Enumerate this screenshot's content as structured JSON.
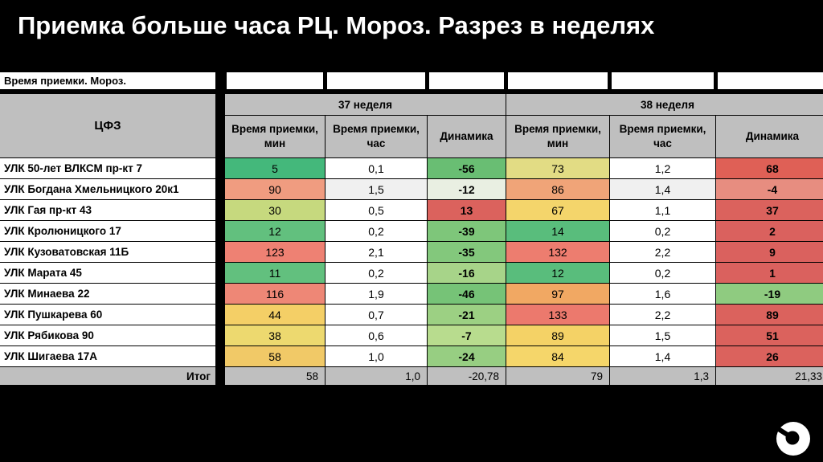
{
  "chart_data": {
    "type": "table",
    "title": "Приемка больше часа РЦ. Мороз. Разрез в неделях",
    "caption": "Время приемки. Мороз.",
    "row_header": "ЦФЗ",
    "column_groups": [
      "37 неделя",
      "38 неделя"
    ],
    "columns": [
      "Время приемки, мин",
      "Время приемки, час",
      "Динамика",
      "Время приемки, мин",
      "Время приемки, час",
      "Динамика"
    ],
    "rows": [
      {
        "name": "УЛК 50-лет ВЛКСМ пр-кт 7",
        "cells": [
          {
            "v": "5",
            "bg": "#44B87B"
          },
          {
            "v": "0,1",
            "bg": "#FFFFFF"
          },
          {
            "v": "-56",
            "bg": "#69BE73"
          },
          {
            "v": "73",
            "bg": "#E2DC84"
          },
          {
            "v": "1,2",
            "bg": "#FFFFFF"
          },
          {
            "v": "68",
            "bg": "#DF6056"
          }
        ]
      },
      {
        "name": "УЛК Богдана Хмельницкого 20к1",
        "cells": [
          {
            "v": "90",
            "bg": "#F09C80"
          },
          {
            "v": "1,5",
            "bg": "#F0F0F0"
          },
          {
            "v": "-12",
            "bg": "#E9EFE2"
          },
          {
            "v": "86",
            "bg": "#F0A478"
          },
          {
            "v": "1,4",
            "bg": "#F0F0F0"
          },
          {
            "v": "-4",
            "bg": "#E78D80"
          }
        ]
      },
      {
        "name": "УЛК Гая пр-кт 43",
        "cells": [
          {
            "v": "30",
            "bg": "#C6D97E"
          },
          {
            "v": "0,5",
            "bg": "#FFFFFF"
          },
          {
            "v": "13",
            "bg": "#DB625D"
          },
          {
            "v": "67",
            "bg": "#F4D56B"
          },
          {
            "v": "1,1",
            "bg": "#FFFFFF"
          },
          {
            "v": "37",
            "bg": "#DB625D"
          }
        ]
      },
      {
        "name": "УЛК Кролюницкого 17",
        "cells": [
          {
            "v": "12",
            "bg": "#62C07E"
          },
          {
            "v": "0,2",
            "bg": "#FFFFFF"
          },
          {
            "v": "-39",
            "bg": "#7EC67A"
          },
          {
            "v": "14",
            "bg": "#59BD7C"
          },
          {
            "v": "0,2",
            "bg": "#FFFFFF"
          },
          {
            "v": "2",
            "bg": "#DA615E"
          }
        ]
      },
      {
        "name": "УЛК Кузоватовская 11Б",
        "cells": [
          {
            "v": "123",
            "bg": "#EE8173"
          },
          {
            "v": "2,1",
            "bg": "#FFFFFF"
          },
          {
            "v": "-35",
            "bg": "#83C87C"
          },
          {
            "v": "132",
            "bg": "#ED7D6F"
          },
          {
            "v": "2,2",
            "bg": "#FFFFFF"
          },
          {
            "v": "9",
            "bg": "#DA615E"
          }
        ]
      },
      {
        "name": "УЛК Марата 45",
        "cells": [
          {
            "v": "11",
            "bg": "#62C07E"
          },
          {
            "v": "0,2",
            "bg": "#FFFFFF"
          },
          {
            "v": "-16",
            "bg": "#A7D489"
          },
          {
            "v": "12",
            "bg": "#59BD7C"
          },
          {
            "v": "0,2",
            "bg": "#FFFFFF"
          },
          {
            "v": "1",
            "bg": "#DA615E"
          }
        ]
      },
      {
        "name": "УЛК Минаева 22",
        "cells": [
          {
            "v": "116",
            "bg": "#EE8776"
          },
          {
            "v": "1,9",
            "bg": "#FFFFFF"
          },
          {
            "v": "-46",
            "bg": "#76C377"
          },
          {
            "v": "97",
            "bg": "#F1A863"
          },
          {
            "v": "1,6",
            "bg": "#FFFFFF"
          },
          {
            "v": "-19",
            "bg": "#8FCB80"
          }
        ]
      },
      {
        "name": "УЛК Пушкарева 60",
        "cells": [
          {
            "v": "44",
            "bg": "#F4CF66"
          },
          {
            "v": "0,7",
            "bg": "#FFFFFF"
          },
          {
            "v": "-21",
            "bg": "#9CD083"
          },
          {
            "v": "133",
            "bg": "#EC796D"
          },
          {
            "v": "2,2",
            "bg": "#FFFFFF"
          },
          {
            "v": "89",
            "bg": "#DB625D"
          }
        ]
      },
      {
        "name": "УЛК Рябикова 90",
        "cells": [
          {
            "v": "38",
            "bg": "#EDD96F"
          },
          {
            "v": "0,6",
            "bg": "#FFFFFF"
          },
          {
            "v": "-7",
            "bg": "#B8DC8E"
          },
          {
            "v": "89",
            "bg": "#F4D266"
          },
          {
            "v": "1,5",
            "bg": "#FFFFFF"
          },
          {
            "v": "51",
            "bg": "#DB625D"
          }
        ]
      },
      {
        "name": "УЛК Шигаева 17А",
        "cells": [
          {
            "v": "58",
            "bg": "#F1C967"
          },
          {
            "v": "1,0",
            "bg": "#FFFFFF"
          },
          {
            "v": "-24",
            "bg": "#97CE82"
          },
          {
            "v": "84",
            "bg": "#F5D66A"
          },
          {
            "v": "1,4",
            "bg": "#FFFFFF"
          },
          {
            "v": "26",
            "bg": "#DB625D"
          }
        ]
      }
    ],
    "totals": {
      "label": "Итог",
      "values": [
        "58",
        "1,0",
        "-20,78",
        "79",
        "1,3",
        "21,33"
      ]
    },
    "colors": {
      "header_bg": "#BFBFBF",
      "total_bg": "#BFBFBF",
      "slide_background": "#000000",
      "title_color": "#FFFFFF",
      "dynamics_negative": "#8FCB80",
      "dynamics_positive": "#DB625D"
    },
    "layout": {
      "grid": "on",
      "legend": "none"
    }
  }
}
